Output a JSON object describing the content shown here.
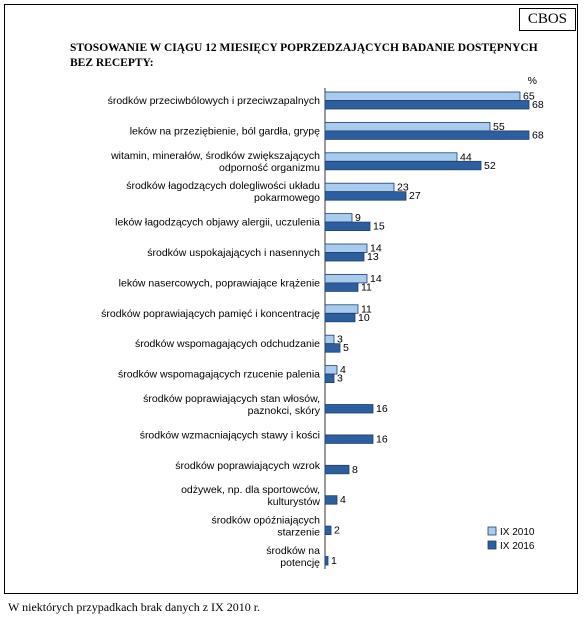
{
  "header": {
    "brand": "CBOS"
  },
  "footnote": "W niektórych przypadkach brak danych z IX 2010 r.",
  "colors": {
    "series_2010": "#a9cbed",
    "series_2016": "#2d5f9f",
    "border": "#1d3f6e"
  },
  "chart_data": {
    "type": "bar",
    "orientation": "horizontal",
    "title": "STOSOWANIE W CIĄGU 12 MIESIĘCY POPRZEDZAJĄCYCH BADANIE DOSTĘPNYCH BEZ RECEPTY:",
    "unit_label": "%",
    "xlim": [
      0,
      70
    ],
    "grid": false,
    "legend_position": "bottom-right",
    "categories": [
      [
        "środków przeciwbólowych i przeciwzapalnych"
      ],
      [
        "leków na przeziębienie, ból gardła, grypę"
      ],
      [
        "witamin, minerałów, środków zwiększających",
        "odporność organizmu"
      ],
      [
        "środków łagodzących dolegliwości układu",
        "pokarmowego"
      ],
      [
        "leków łagodzących objawy alergii, uczulenia"
      ],
      [
        "środków uspokajających i nasennych"
      ],
      [
        "leków nasercowych, poprawiające krążenie"
      ],
      [
        "środków poprawiających pamięć i koncentrację"
      ],
      [
        "środków wspomagających odchudzanie"
      ],
      [
        "środków wspomagających rzucenie palenia"
      ],
      [
        "środków poprawiających stan włosów,",
        "paznokci, skóry"
      ],
      [
        "środków wzmacniających stawy i kości"
      ],
      [
        "środków poprawiających wzrok"
      ],
      [
        "odżywek, np. dla sportowców,",
        "kulturystów"
      ],
      [
        "środków opóźniających",
        "starzenie"
      ],
      [
        "środków na",
        "potencję"
      ]
    ],
    "series": [
      {
        "name": "IX 2010",
        "values": [
          65,
          55,
          44,
          23,
          9,
          14,
          14,
          11,
          3,
          4,
          null,
          null,
          null,
          null,
          null,
          null
        ]
      },
      {
        "name": "IX 2016",
        "values": [
          68,
          68,
          52,
          27,
          15,
          13,
          11,
          10,
          5,
          3,
          16,
          16,
          8,
          4,
          2,
          1
        ]
      }
    ]
  }
}
